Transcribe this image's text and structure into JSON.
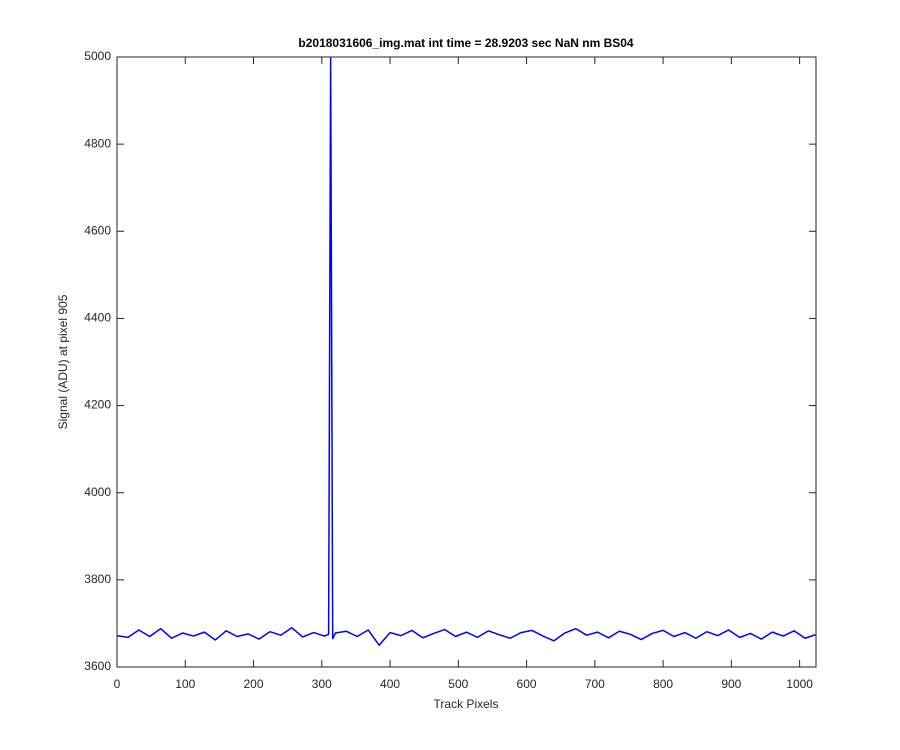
{
  "chart_data": {
    "type": "line",
    "title": "b2018031606_img.mat int time = 28.9203 sec  NaN nm BS04",
    "x_label": "Track Pixels",
    "y_label": "Signal (ADU) at pixel 905",
    "x": [
      0,
      16,
      32,
      48,
      64,
      80,
      96,
      112,
      128,
      144,
      160,
      176,
      192,
      208,
      224,
      240,
      256,
      272,
      288,
      304,
      310,
      313,
      316,
      320,
      336,
      352,
      368,
      384,
      400,
      416,
      432,
      448,
      464,
      480,
      496,
      512,
      528,
      544,
      560,
      576,
      592,
      608,
      624,
      640,
      656,
      672,
      688,
      704,
      720,
      736,
      752,
      768,
      784,
      800,
      816,
      832,
      848,
      864,
      880,
      896,
      912,
      928,
      944,
      960,
      976,
      992,
      1008,
      1023
    ],
    "series": [
      {
        "color": "#0000ff",
        "values": [
          3672,
          3668,
          3685,
          3670,
          3688,
          3666,
          3678,
          3671,
          3680,
          3662,
          3683,
          3670,
          3676,
          3664,
          3681,
          3673,
          3690,
          3669,
          3679,
          3671,
          3675,
          5000,
          3665,
          3678,
          3682,
          3670,
          3685,
          3650,
          3679,
          3672,
          3684,
          3667,
          3677,
          3686,
          3670,
          3680,
          3668,
          3683,
          3674,
          3666,
          3679,
          3684,
          3671,
          3660,
          3678,
          3688,
          3673,
          3680,
          3667,
          3682,
          3675,
          3663,
          3677,
          3684,
          3670,
          3679,
          3666,
          3681,
          3672,
          3685,
          3668,
          3677,
          3664,
          3680,
          3671,
          3683,
          3666,
          3674
        ]
      }
    ],
    "xlim": [
      0,
      1024
    ],
    "ylim": [
      3600,
      5000
    ],
    "xticks": [
      0,
      100,
      200,
      300,
      400,
      500,
      600,
      700,
      800,
      900,
      1000
    ],
    "yticks": [
      3600,
      3800,
      4000,
      4200,
      4400,
      4600,
      4800,
      5000
    ]
  }
}
